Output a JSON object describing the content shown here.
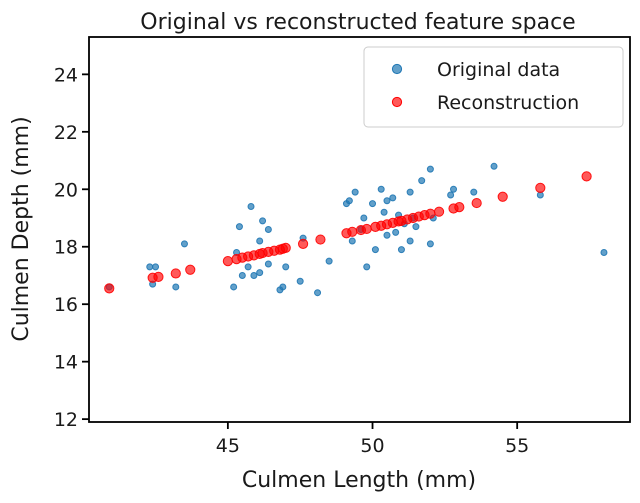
{
  "chart_data": {
    "type": "scatter",
    "title": "Original vs reconstructed feature space",
    "xlabel": "Culmen Length (mm)",
    "ylabel": "Culmen Depth (mm)",
    "xlim": [
      40.2,
      58.9
    ],
    "ylim": [
      11.9,
      25.3
    ],
    "xticks": [
      45,
      50,
      55
    ],
    "yticks": [
      12,
      14,
      16,
      18,
      20,
      22,
      24
    ],
    "grid": false,
    "legend_position": "top-right",
    "series": [
      {
        "name": "Original data",
        "color": "#1f77b4",
        "points": [
          [
            40.9,
            16.6
          ],
          [
            42.3,
            17.3
          ],
          [
            42.5,
            17.3
          ],
          [
            42.4,
            16.7
          ],
          [
            43.2,
            16.6
          ],
          [
            43.5,
            18.1
          ],
          [
            45.2,
            16.6
          ],
          [
            45.3,
            17.8
          ],
          [
            45.4,
            18.7
          ],
          [
            45.5,
            17.0
          ],
          [
            45.7,
            17.3
          ],
          [
            45.8,
            19.4
          ],
          [
            45.9,
            17.0
          ],
          [
            46.1,
            18.2
          ],
          [
            46.1,
            17.1
          ],
          [
            46.2,
            18.9
          ],
          [
            46.4,
            17.4
          ],
          [
            46.4,
            18.6
          ],
          [
            46.8,
            16.5
          ],
          [
            46.9,
            16.6
          ],
          [
            47.0,
            17.3
          ],
          [
            47.5,
            16.8
          ],
          [
            47.6,
            18.3
          ],
          [
            48.1,
            16.4
          ],
          [
            48.5,
            17.5
          ],
          [
            49.1,
            19.5
          ],
          [
            49.2,
            19.6
          ],
          [
            49.3,
            18.2
          ],
          [
            49.4,
            19.9
          ],
          [
            49.6,
            18.6
          ],
          [
            49.7,
            19.0
          ],
          [
            49.8,
            17.3
          ],
          [
            50.0,
            19.5
          ],
          [
            50.1,
            17.9
          ],
          [
            50.3,
            20.0
          ],
          [
            50.4,
            19.2
          ],
          [
            50.5,
            19.6
          ],
          [
            50.5,
            18.4
          ],
          [
            50.7,
            19.7
          ],
          [
            50.8,
            18.5
          ],
          [
            50.9,
            19.1
          ],
          [
            51.0,
            17.9
          ],
          [
            51.1,
            18.8
          ],
          [
            51.3,
            19.9
          ],
          [
            51.3,
            18.2
          ],
          [
            51.4,
            19.0
          ],
          [
            51.5,
            18.7
          ],
          [
            51.7,
            20.3
          ],
          [
            52.0,
            20.7
          ],
          [
            52.0,
            18.1
          ],
          [
            52.1,
            19.0
          ],
          [
            52.7,
            19.8
          ],
          [
            52.8,
            20.0
          ],
          [
            53.5,
            19.9
          ],
          [
            54.2,
            20.8
          ],
          [
            55.8,
            19.8
          ],
          [
            58.0,
            17.8
          ]
        ]
      },
      {
        "name": "Reconstruction",
        "color": "#ff0000",
        "points": [
          [
            40.9,
            16.55
          ],
          [
            42.4,
            16.92
          ],
          [
            42.6,
            16.95
          ],
          [
            43.2,
            17.07
          ],
          [
            43.7,
            17.2
          ],
          [
            45.0,
            17.5
          ],
          [
            45.3,
            17.57
          ],
          [
            45.5,
            17.62
          ],
          [
            45.7,
            17.66
          ],
          [
            45.9,
            17.7
          ],
          [
            46.1,
            17.75
          ],
          [
            46.2,
            17.78
          ],
          [
            46.4,
            17.82
          ],
          [
            46.6,
            17.86
          ],
          [
            46.8,
            17.9
          ],
          [
            46.9,
            17.93
          ],
          [
            47.0,
            17.96
          ],
          [
            47.6,
            18.1
          ],
          [
            48.2,
            18.25
          ],
          [
            49.1,
            18.47
          ],
          [
            49.3,
            18.52
          ],
          [
            49.6,
            18.58
          ],
          [
            49.8,
            18.62
          ],
          [
            50.1,
            18.69
          ],
          [
            50.3,
            18.73
          ],
          [
            50.5,
            18.78
          ],
          [
            50.7,
            18.83
          ],
          [
            50.9,
            18.88
          ],
          [
            51.0,
            18.9
          ],
          [
            51.2,
            18.95
          ],
          [
            51.4,
            19.0
          ],
          [
            51.6,
            19.05
          ],
          [
            51.8,
            19.1
          ],
          [
            52.0,
            19.15
          ],
          [
            52.3,
            19.22
          ],
          [
            52.8,
            19.33
          ],
          [
            53.0,
            19.38
          ],
          [
            53.6,
            19.52
          ],
          [
            54.5,
            19.74
          ],
          [
            55.8,
            20.05
          ],
          [
            57.4,
            20.45
          ]
        ]
      }
    ]
  }
}
